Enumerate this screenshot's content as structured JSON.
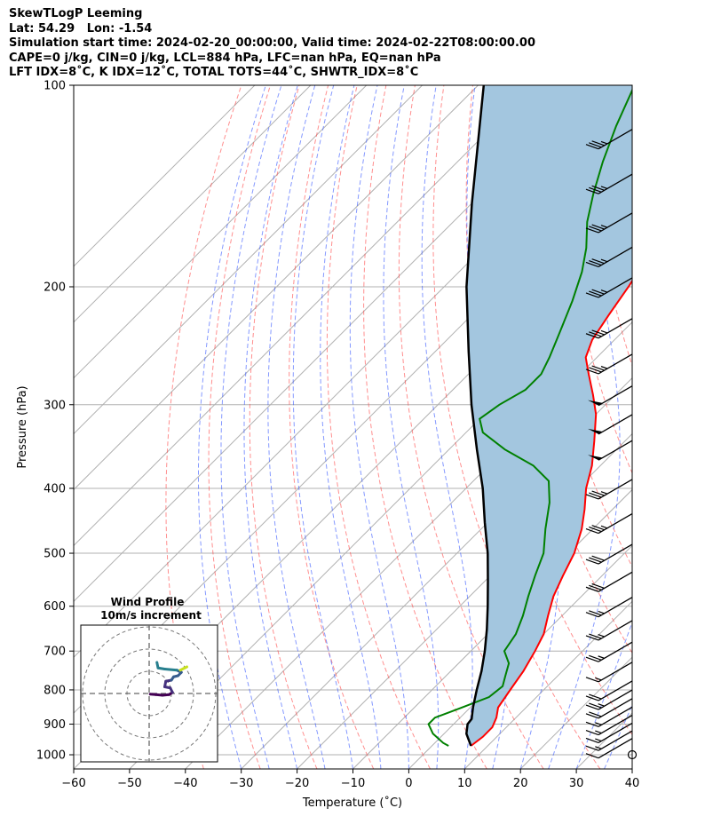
{
  "header": {
    "line1": "SkewTLogP Leeming",
    "line2": "Lat: 54.29   Lon: -1.54",
    "line3": "Simulation start time: 2024-02-20_00:00:00, Valid time: 2024-02-22T08:00:00.00",
    "line4": "CAPE=0 j/kg, CIN=0 j/kg, LCL=884 hPa, LFC=nan hPa, EQ=nan hPa",
    "line5": "LFT IDX=8˚C, K IDX=12˚C, TOTAL TOTS=44˚C, SHWTR_IDX=8˚C"
  },
  "colors": {
    "temperature": "#ff0000",
    "dewpoint": "#008000",
    "parcel": "#000000",
    "cape_fill": "#a3c6df",
    "dry_adiabat": "#ff4444",
    "moist_adiabat": "#3355ff",
    "mixing_ratio": "#888888",
    "isotherm_zero": "#8844cc"
  },
  "chart_data": {
    "type": "skewt",
    "xlabel": "Temperature (˚C)",
    "ylabel": "Pressure (hPa)",
    "xlim": [
      -60,
      40
    ],
    "ylim": [
      1050,
      100
    ],
    "x_ticks": [
      "−60",
      "−50",
      "−40",
      "−30",
      "−20",
      "−10",
      "0",
      "10",
      "20",
      "30",
      "40"
    ],
    "y_ticks": [
      "100",
      "200",
      "300",
      "400",
      "500",
      "600",
      "700",
      "800",
      "900",
      "1000"
    ],
    "temperature_profile": [
      {
        "p": 970,
        "t": 7.0
      },
      {
        "p": 940,
        "t": 7.5
      },
      {
        "p": 910,
        "t": 7.5
      },
      {
        "p": 880,
        "t": 6.5
      },
      {
        "p": 850,
        "t": 5.0
      },
      {
        "p": 800,
        "t": 4.0
      },
      {
        "p": 750,
        "t": 3.0
      },
      {
        "p": 700,
        "t": 1.5
      },
      {
        "p": 660,
        "t": 0.0
      },
      {
        "p": 620,
        "t": -2.5
      },
      {
        "p": 580,
        "t": -5.0
      },
      {
        "p": 540,
        "t": -7.0
      },
      {
        "p": 500,
        "t": -9.0
      },
      {
        "p": 460,
        "t": -12.0
      },
      {
        "p": 430,
        "t": -15.0
      },
      {
        "p": 400,
        "t": -18.5
      },
      {
        "p": 370,
        "t": -21.5
      },
      {
        "p": 340,
        "t": -25.5
      },
      {
        "p": 310,
        "t": -30.0
      },
      {
        "p": 290,
        "t": -34.0
      },
      {
        "p": 270,
        "t": -38.5
      },
      {
        "p": 255,
        "t": -42.0
      },
      {
        "p": 240,
        "t": -44.0
      },
      {
        "p": 220,
        "t": -45.5
      },
      {
        "p": 200,
        "t": -47.0
      },
      {
        "p": 180,
        "t": -49.0
      },
      {
        "p": 165,
        "t": -51.0
      },
      {
        "p": 150,
        "t": -55.5
      },
      {
        "p": 135,
        "t": -61.0
      },
      {
        "p": 120,
        "t": -66.5
      },
      {
        "p": 110,
        "t": -70.5
      },
      {
        "p": 100,
        "t": -74.5
      }
    ],
    "dewpoint_profile": [
      {
        "p": 970,
        "t": 3.0
      },
      {
        "p": 960,
        "t": 1.5
      },
      {
        "p": 930,
        "t": -2.0
      },
      {
        "p": 900,
        "t": -4.5
      },
      {
        "p": 880,
        "t": -4.5
      },
      {
        "p": 850,
        "t": -1.5
      },
      {
        "p": 820,
        "t": 1.5
      },
      {
        "p": 790,
        "t": 2.0
      },
      {
        "p": 760,
        "t": 0.5
      },
      {
        "p": 730,
        "t": -1.0
      },
      {
        "p": 700,
        "t": -4.0
      },
      {
        "p": 660,
        "t": -5.0
      },
      {
        "p": 620,
        "t": -7.0
      },
      {
        "p": 580,
        "t": -9.5
      },
      {
        "p": 540,
        "t": -12.0
      },
      {
        "p": 500,
        "t": -14.5
      },
      {
        "p": 460,
        "t": -18.5
      },
      {
        "p": 420,
        "t": -22.5
      },
      {
        "p": 390,
        "t": -26.5
      },
      {
        "p": 370,
        "t": -32.0
      },
      {
        "p": 350,
        "t": -40.0
      },
      {
        "p": 330,
        "t": -47.0
      },
      {
        "p": 315,
        "t": -50.0
      },
      {
        "p": 300,
        "t": -49.0
      },
      {
        "p": 285,
        "t": -47.0
      },
      {
        "p": 270,
        "t": -47.0
      },
      {
        "p": 255,
        "t": -48.5
      },
      {
        "p": 235,
        "t": -51.0
      },
      {
        "p": 210,
        "t": -54.5
      },
      {
        "p": 190,
        "t": -58.0
      },
      {
        "p": 175,
        "t": -61.5
      },
      {
        "p": 160,
        "t": -66.0
      },
      {
        "p": 145,
        "t": -70.0
      },
      {
        "p": 130,
        "t": -74.0
      },
      {
        "p": 115,
        "t": -78.0
      },
      {
        "p": 100,
        "t": -82.0
      }
    ],
    "parcel_profile": [
      {
        "p": 970,
        "t": 7.0
      },
      {
        "p": 930,
        "t": 4.0
      },
      {
        "p": 900,
        "t": 2.5
      },
      {
        "p": 884,
        "t": 2.3
      },
      {
        "p": 850,
        "t": 0.5
      },
      {
        "p": 800,
        "t": -2.0
      },
      {
        "p": 750,
        "t": -4.5
      },
      {
        "p": 700,
        "t": -7.5
      },
      {
        "p": 650,
        "t": -11.0
      },
      {
        "p": 600,
        "t": -15.0
      },
      {
        "p": 550,
        "t": -19.5
      },
      {
        "p": 500,
        "t": -24.5
      },
      {
        "p": 450,
        "t": -30.5
      },
      {
        "p": 400,
        "t": -37.0
      },
      {
        "p": 350,
        "t": -45.0
      },
      {
        "p": 300,
        "t": -54.0
      },
      {
        "p": 250,
        "t": -64.0
      },
      {
        "p": 200,
        "t": -76.0
      },
      {
        "p": 150,
        "t": -90.0
      },
      {
        "p": 100,
        "t": -109.0
      }
    ],
    "wind_barbs": [
      {
        "p": 1000,
        "speed_kt": 0
      },
      {
        "p": 975,
        "speed_kt": 10
      },
      {
        "p": 950,
        "speed_kt": 15
      },
      {
        "p": 925,
        "speed_kt": 15
      },
      {
        "p": 900,
        "speed_kt": 15
      },
      {
        "p": 875,
        "speed_kt": 15
      },
      {
        "p": 850,
        "speed_kt": 20
      },
      {
        "p": 825,
        "speed_kt": 25
      },
      {
        "p": 800,
        "speed_kt": 20
      },
      {
        "p": 750,
        "speed_kt": 15
      },
      {
        "p": 700,
        "speed_kt": 25
      },
      {
        "p": 650,
        "speed_kt": 25
      },
      {
        "p": 600,
        "speed_kt": 25
      },
      {
        "p": 550,
        "speed_kt": 30
      },
      {
        "p": 500,
        "speed_kt": 30
      },
      {
        "p": 450,
        "speed_kt": 35
      },
      {
        "p": 400,
        "speed_kt": 35
      },
      {
        "p": 350,
        "speed_kt": 50
      },
      {
        "p": 320,
        "speed_kt": 50
      },
      {
        "p": 290,
        "speed_kt": 50
      },
      {
        "p": 260,
        "speed_kt": 35
      },
      {
        "p": 230,
        "speed_kt": 35
      },
      {
        "p": 200,
        "speed_kt": 35
      },
      {
        "p": 180,
        "speed_kt": 35
      },
      {
        "p": 160,
        "speed_kt": 35
      },
      {
        "p": 140,
        "speed_kt": 35
      },
      {
        "p": 120,
        "speed_kt": 35
      }
    ],
    "hodograph": {
      "title": "Wind Profile",
      "subtitle": "10m/s increment",
      "rings_ms": [
        10,
        20,
        30
      ],
      "points_ms": [
        {
          "u": 0.5,
          "v": -0.3
        },
        {
          "u": 3,
          "v": -0.5
        },
        {
          "u": 6,
          "v": -0.8
        },
        {
          "u": 9,
          "v": -0.5
        },
        {
          "u": 10.5,
          "v": 0.5
        },
        {
          "u": 9.5,
          "v": 2.5
        },
        {
          "u": 7,
          "v": 3
        },
        {
          "u": 7.5,
          "v": 5.5
        },
        {
          "u": 10,
          "v": 6
        },
        {
          "u": 11,
          "v": 7.5
        },
        {
          "u": 13,
          "v": 8
        },
        {
          "u": 14.5,
          "v": 9.5
        },
        {
          "u": 12.5,
          "v": 10.5
        },
        {
          "u": 7,
          "v": 11
        },
        {
          "u": 4,
          "v": 11.5
        },
        {
          "u": 3.5,
          "v": 14
        }
      ],
      "tail_points_ms": [
        {
          "u": 14,
          "v": 10.5
        },
        {
          "u": 16,
          "v": 11.5
        },
        {
          "u": 17,
          "v": 12
        }
      ]
    }
  }
}
